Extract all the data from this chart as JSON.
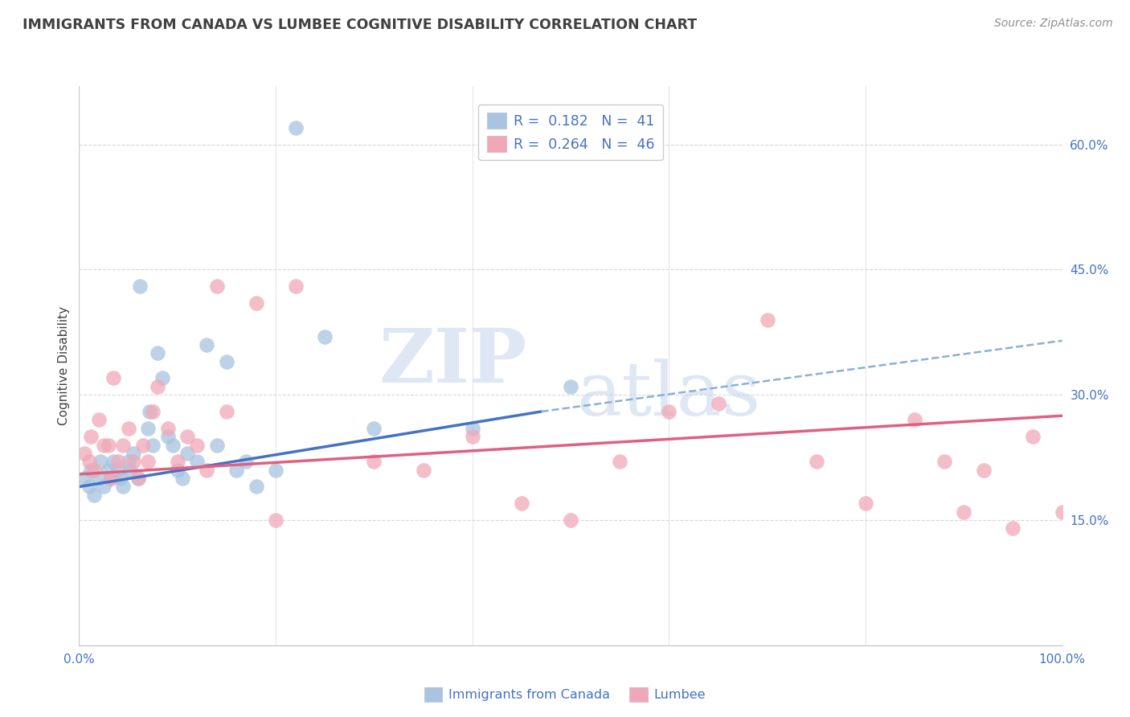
{
  "title": "IMMIGRANTS FROM CANADA VS LUMBEE COGNITIVE DISABILITY CORRELATION CHART",
  "source": "Source: ZipAtlas.com",
  "ylabel": "Cognitive Disability",
  "xlim": [
    0,
    100
  ],
  "ylim": [
    0,
    67
  ],
  "x_ticks": [
    0,
    20,
    40,
    60,
    80,
    100
  ],
  "x_tick_labels": [
    "0.0%",
    "",
    "",
    "",
    "",
    "100.0%"
  ],
  "y_ticks_right": [
    0,
    15,
    30,
    45,
    60
  ],
  "y_tick_labels_right": [
    "",
    "15.0%",
    "30.0%",
    "45.0%",
    "60.0%"
  ],
  "legend_text1": "R =  0.182   N =  41",
  "legend_text2": "R =  0.264   N =  46",
  "blue_color": "#a8c4e0",
  "pink_color": "#f0a8b8",
  "blue_line_color": "#4472c4",
  "pink_line_color": "#e06080",
  "dashed_line_color": "#8ab0d8",
  "background_color": "#ffffff",
  "grid_color": "#d8d8d8",
  "title_color": "#404040",
  "source_color": "#909090",
  "axis_label_color": "#4472c4",
  "blue_scatter_x": [
    0.5,
    1,
    1.2,
    1.5,
    2,
    2.2,
    2.5,
    3,
    3.2,
    3.5,
    4,
    4.2,
    4.5,
    5,
    5.2,
    5.5,
    6,
    6.2,
    7,
    7.2,
    7.5,
    8,
    8.5,
    9,
    9.5,
    10,
    10.5,
    11,
    12,
    13,
    14,
    15,
    16,
    17,
    18,
    20,
    22,
    25,
    30,
    40,
    50
  ],
  "blue_scatter_y": [
    20,
    19,
    21,
    18,
    20,
    22,
    19,
    21,
    20,
    22,
    21,
    20,
    19,
    22,
    21,
    23,
    20,
    43,
    26,
    28,
    24,
    35,
    32,
    25,
    24,
    21,
    20,
    23,
    22,
    36,
    24,
    34,
    21,
    22,
    19,
    21,
    62,
    37,
    26,
    26,
    31
  ],
  "pink_scatter_x": [
    0.5,
    1,
    1.2,
    1.5,
    2,
    2.5,
    3,
    3.2,
    3.5,
    4,
    4.5,
    5,
    5.5,
    6,
    6.5,
    7,
    7.5,
    8,
    9,
    10,
    11,
    12,
    13,
    14,
    15,
    18,
    20,
    22,
    30,
    35,
    40,
    45,
    50,
    55,
    60,
    65,
    70,
    75,
    80,
    85,
    88,
    90,
    92,
    95,
    97,
    100
  ],
  "pink_scatter_x_extra": [],
  "pink_scatter_y": [
    23,
    22,
    25,
    21,
    27,
    24,
    24,
    20,
    32,
    22,
    24,
    26,
    22,
    20,
    24,
    22,
    28,
    31,
    26,
    22,
    25,
    24,
    21,
    43,
    28,
    41,
    15,
    43,
    22,
    21,
    25,
    17,
    15,
    22,
    28,
    29,
    39,
    22,
    17,
    27,
    22,
    16,
    21,
    14,
    25,
    16
  ],
  "blue_trend_x": [
    0,
    47
  ],
  "blue_trend_y": [
    19.0,
    28.0
  ],
  "pink_trend_x": [
    0,
    100
  ],
  "pink_trend_y": [
    20.5,
    27.5
  ],
  "dashed_trend_x": [
    47,
    100
  ],
  "dashed_trend_y": [
    28.0,
    36.5
  ],
  "watermark_zip_x": 38,
  "watermark_zip_y": 34,
  "watermark_atlas_x": 60,
  "watermark_atlas_y": 30
}
